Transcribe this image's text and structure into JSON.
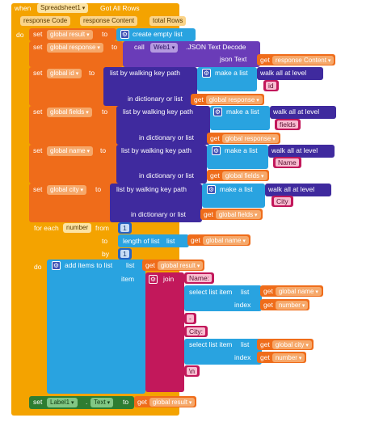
{
  "event": {
    "when": "when",
    "component": "Spreadsheet1",
    "event_name": "Got All Rows",
    "params": [
      "response Code",
      "response Content",
      "total Rows"
    ],
    "do": "do"
  },
  "kw": {
    "set": "set",
    "to": "to",
    "get": "get",
    "call": "call",
    "json_text": "json Text",
    "make_a_list": "make a list",
    "walk_all_at_level": "walk all at level",
    "list_by_walking": "list by walking key path",
    "in_dict_or_list": "in dictionary or list",
    "for_each": "for each",
    "from": "from",
    "by": "by",
    "length_of_list": "length of list",
    "list": "list",
    "add_items": "add items to list",
    "list_label": "list",
    "item": "item",
    "join": "join",
    "select_list_item": "select list item",
    "index": "index",
    "create_empty_list": "create empty list"
  },
  "blocks": {
    "set_result_var": "global result",
    "set_response_var": "global response",
    "web_component": "Web1",
    "json_method": ".JSON Text Decode",
    "get_response_content": "response Content",
    "set_id_var": "global id",
    "id_key": "id",
    "get_global_response_1": "global response",
    "set_fields_var": "global fields",
    "fields_key": "fields",
    "get_global_response_2": "global response",
    "set_name_var": "global name",
    "name_key": "Name",
    "get_global_fields_1": "global fields",
    "set_city_var": "global city",
    "city_key": "City",
    "get_global_fields_2": "global fields",
    "loop_var": "number",
    "from_val": "1",
    "get_global_name_len": "global name",
    "by_val": "1",
    "get_global_result_add": "global result",
    "join_str_name": "Name:",
    "get_global_name_sel": "global name",
    "get_number_1": "number",
    "join_str_dash": "-",
    "join_str_city": "City:",
    "get_global_city_sel": "global city",
    "get_number_2": "number",
    "join_str_newline": "\\n",
    "label_component": "Label1",
    "label_prop": "Text",
    "get_global_result_final": "global result"
  },
  "colors": {
    "event": "#f4a300",
    "set": "#ef6c1a",
    "get": "#ef6c1a",
    "lists": "#29a3e0",
    "dict": "#3f2a9e",
    "text": "#c2185b",
    "loop": "#f4a300",
    "procedure": "#6a3cb8",
    "component": "#2e7d32",
    "math": "#2563c4"
  }
}
